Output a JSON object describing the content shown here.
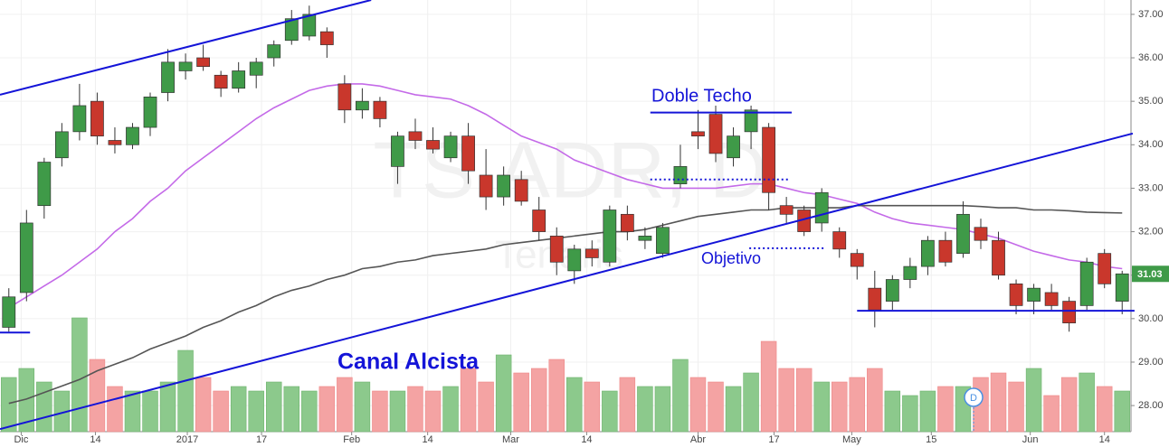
{
  "chart_data": {
    "type": "candlestick",
    "title": "TS.ADR, D",
    "subtitle": "Tenaris",
    "xlim": [
      -0.5,
      63.5
    ],
    "xticks": [
      {
        "value": 0.7,
        "label": "Dic"
      },
      {
        "value": 4.9,
        "label": "14"
      },
      {
        "value": 10.1,
        "label": "2017"
      },
      {
        "value": 14.3,
        "label": "17"
      },
      {
        "value": 19.4,
        "label": "Feb"
      },
      {
        "value": 23.7,
        "label": "14"
      },
      {
        "value": 28.4,
        "label": "Mar"
      },
      {
        "value": 32.7,
        "label": "14"
      },
      {
        "value": 39,
        "label": "Abr"
      },
      {
        "value": 43.3,
        "label": "17"
      },
      {
        "value": 47.7,
        "label": "May"
      },
      {
        "value": 52.2,
        "label": "15"
      },
      {
        "value": 57.8,
        "label": "Jun"
      },
      {
        "value": 62,
        "label": "14"
      }
    ],
    "ylim": [
      27.4,
      37.33
    ],
    "yticks": [
      {
        "value": 28,
        "label": "28.00"
      },
      {
        "value": 29,
        "label": "29.00"
      },
      {
        "value": 30,
        "label": "30.00"
      },
      {
        "value": 31,
        "label": "31.00"
      },
      {
        "value": 32,
        "label": "32.00"
      },
      {
        "value": 33,
        "label": "33.00"
      },
      {
        "value": 34,
        "label": "34.00"
      },
      {
        "value": 35,
        "label": "35.00"
      },
      {
        "value": 36,
        "label": "36.00"
      },
      {
        "value": 37,
        "label": "37.00"
      }
    ],
    "y2lim": [
      0,
      478
    ],
    "grid": true,
    "up_color": "#3f9a48",
    "down_color": "#c9372c",
    "up_volume_color": "#8cc98c",
    "down_volume_color": "#f4a3a3",
    "open": [
      29.8,
      30.6,
      32.6,
      33.7,
      34.3,
      35.0,
      34.1,
      34.0,
      34.4,
      35.2,
      35.7,
      36.0,
      35.6,
      35.3,
      35.6,
      36.0,
      36.4,
      36.5,
      36.6,
      35.4,
      34.8,
      35.0,
      33.5,
      34.3,
      34.1,
      33.7,
      34.2,
      33.3,
      32.8,
      33.2,
      32.5,
      31.9,
      31.1,
      31.6,
      31.3,
      32.4,
      31.8,
      31.5,
      33.1,
      34.3,
      34.7,
      33.7,
      34.3,
      34.4,
      32.6,
      32.5,
      32.2,
      32.0,
      31.5,
      30.7,
      30.4,
      30.9,
      31.2,
      31.8,
      31.5,
      32.1,
      31.8,
      30.8,
      30.4,
      30.6,
      30.4,
      30.3,
      31.5,
      30.4
    ],
    "high": [
      30.7,
      32.5,
      33.7,
      34.5,
      35.4,
      35.2,
      34.4,
      34.5,
      35.2,
      36.2,
      36.1,
      36.3,
      35.7,
      35.9,
      36.0,
      36.4,
      37.1,
      37.2,
      36.7,
      35.6,
      35.3,
      35.1,
      34.3,
      34.6,
      34.4,
      34.3,
      34.5,
      33.9,
      33.5,
      33.4,
      32.8,
      32.1,
      31.7,
      31.8,
      32.6,
      32.6,
      32.1,
      32.2,
      34.0,
      34.8,
      34.9,
      34.4,
      34.9,
      34.5,
      32.8,
      32.6,
      33.0,
      32.1,
      31.6,
      31.1,
      31.0,
      31.4,
      31.9,
      32.0,
      32.7,
      32.3,
      32.0,
      30.9,
      30.8,
      30.8,
      30.5,
      31.4,
      31.6,
      31.1
    ],
    "low": [
      29.7,
      30.4,
      32.3,
      33.5,
      34.1,
      34.0,
      33.8,
      33.9,
      34.2,
      35.0,
      35.5,
      35.7,
      35.1,
      35.2,
      35.3,
      35.8,
      36.3,
      36.4,
      36.0,
      34.5,
      34.6,
      34.4,
      33.1,
      33.9,
      33.8,
      33.6,
      33.1,
      32.5,
      32.6,
      32.6,
      31.8,
      31.0,
      30.8,
      31.2,
      31.2,
      31.8,
      31.6,
      31.4,
      33.0,
      33.9,
      33.6,
      33.5,
      33.9,
      32.5,
      32.2,
      31.9,
      32.0,
      31.4,
      30.9,
      29.8,
      30.2,
      30.7,
      31.0,
      31.2,
      31.4,
      31.6,
      30.9,
      30.1,
      30.1,
      30.2,
      29.7,
      30.2,
      30.7,
      30.1
    ],
    "close": [
      30.5,
      32.2,
      33.6,
      34.3,
      34.9,
      34.2,
      34.0,
      34.4,
      35.1,
      35.9,
      35.9,
      35.8,
      35.3,
      35.7,
      35.9,
      36.3,
      36.9,
      37.0,
      36.3,
      34.8,
      35.0,
      34.6,
      34.2,
      34.1,
      33.9,
      34.2,
      33.4,
      32.8,
      33.3,
      32.7,
      32.0,
      31.3,
      31.6,
      31.4,
      32.5,
      32.0,
      31.9,
      32.1,
      33.5,
      34.2,
      33.8,
      34.2,
      34.8,
      32.9,
      32.4,
      32.0,
      32.9,
      31.6,
      31.2,
      30.2,
      30.9,
      31.2,
      31.8,
      31.3,
      32.4,
      31.8,
      31.0,
      30.3,
      30.7,
      30.3,
      29.9,
      31.3,
      30.8,
      31.03
    ],
    "volume": [
      60,
      70,
      55,
      45,
      126,
      80,
      50,
      45,
      45,
      55,
      90,
      60,
      45,
      50,
      45,
      55,
      50,
      45,
      50,
      60,
      55,
      45,
      45,
      50,
      45,
      50,
      70,
      55,
      85,
      65,
      70,
      80,
      60,
      55,
      45,
      60,
      50,
      50,
      80,
      60,
      55,
      50,
      65,
      100,
      70,
      70,
      55,
      55,
      60,
      70,
      45,
      40,
      45,
      50,
      50,
      60,
      65,
      55,
      70,
      40,
      60,
      65,
      50,
      45
    ],
    "lines": [
      {
        "color": "#c46ae8",
        "values": [
          30.25,
          30.5,
          30.75,
          31.0,
          31.3,
          31.6,
          32.0,
          32.3,
          32.7,
          33.0,
          33.4,
          33.7,
          34.0,
          34.3,
          34.6,
          34.85,
          35.05,
          35.25,
          35.35,
          35.4,
          35.4,
          35.35,
          35.25,
          35.15,
          35.1,
          35.05,
          34.9,
          34.7,
          34.45,
          34.2,
          34.05,
          33.9,
          33.65,
          33.5,
          33.35,
          33.2,
          33.1,
          33.0,
          33.0,
          33.0,
          33.0,
          33.05,
          33.1,
          33.1,
          33.0,
          32.9,
          32.85,
          32.75,
          32.65,
          32.45,
          32.3,
          32.2,
          32.15,
          32.1,
          32.05,
          31.95,
          31.85,
          31.7,
          31.55,
          31.45,
          31.35,
          31.3,
          31.2,
          31.15
        ]
      },
      {
        "color": "#555555",
        "values": [
          28.05,
          28.15,
          28.3,
          28.45,
          28.6,
          28.8,
          28.95,
          29.1,
          29.3,
          29.45,
          29.6,
          29.8,
          29.95,
          30.15,
          30.3,
          30.5,
          30.65,
          30.75,
          30.9,
          31.0,
          31.15,
          31.2,
          31.3,
          31.35,
          31.45,
          31.5,
          31.55,
          31.6,
          31.7,
          31.75,
          31.8,
          31.85,
          31.9,
          31.95,
          32.0,
          32.0,
          32.05,
          32.15,
          32.25,
          32.35,
          32.4,
          32.45,
          32.5,
          32.5,
          32.55,
          32.55,
          32.55,
          32.55,
          32.6,
          32.6,
          32.6,
          32.6,
          32.6,
          32.6,
          32.6,
          32.58,
          32.55,
          32.55,
          32.5,
          32.5,
          32.48,
          32.45,
          32.44,
          32.43
        ]
      }
    ],
    "trendlines": [
      {
        "from": [
          -0.5,
          35.15
        ],
        "to": [
          20.5,
          37.33
        ],
        "color": "#1414d8",
        "dotted": false
      },
      {
        "from": [
          -0.5,
          27.46
        ],
        "to": [
          63.6,
          34.26
        ],
        "color": "#1414d8",
        "dotted": false
      },
      {
        "from": [
          36.3,
          34.74
        ],
        "to": [
          44.3,
          34.74
        ],
        "color": "#1414d8",
        "dotted": false
      },
      {
        "from": [
          36.3,
          33.2
        ],
        "to": [
          44.2,
          33.2
        ],
        "color": "#1414d8",
        "dotted": true
      },
      {
        "from": [
          41.9,
          31.62
        ],
        "to": [
          46.1,
          31.62
        ],
        "color": "#1414d8",
        "dotted": true
      },
      {
        "from": [
          48.0,
          30.18
        ],
        "to": [
          63.7,
          30.18
        ],
        "color": "#1414d8",
        "dotted": false
      },
      {
        "from": [
          -0.5,
          29.68
        ],
        "to": [
          1.2,
          29.68
        ],
        "color": "#1414d8",
        "dotted": false
      }
    ],
    "annotations": [
      {
        "text": "Doble Techo"
      },
      {
        "text": "Objetivo"
      },
      {
        "text": "Canal Alcista"
      }
    ],
    "event_label": "D"
  }
}
